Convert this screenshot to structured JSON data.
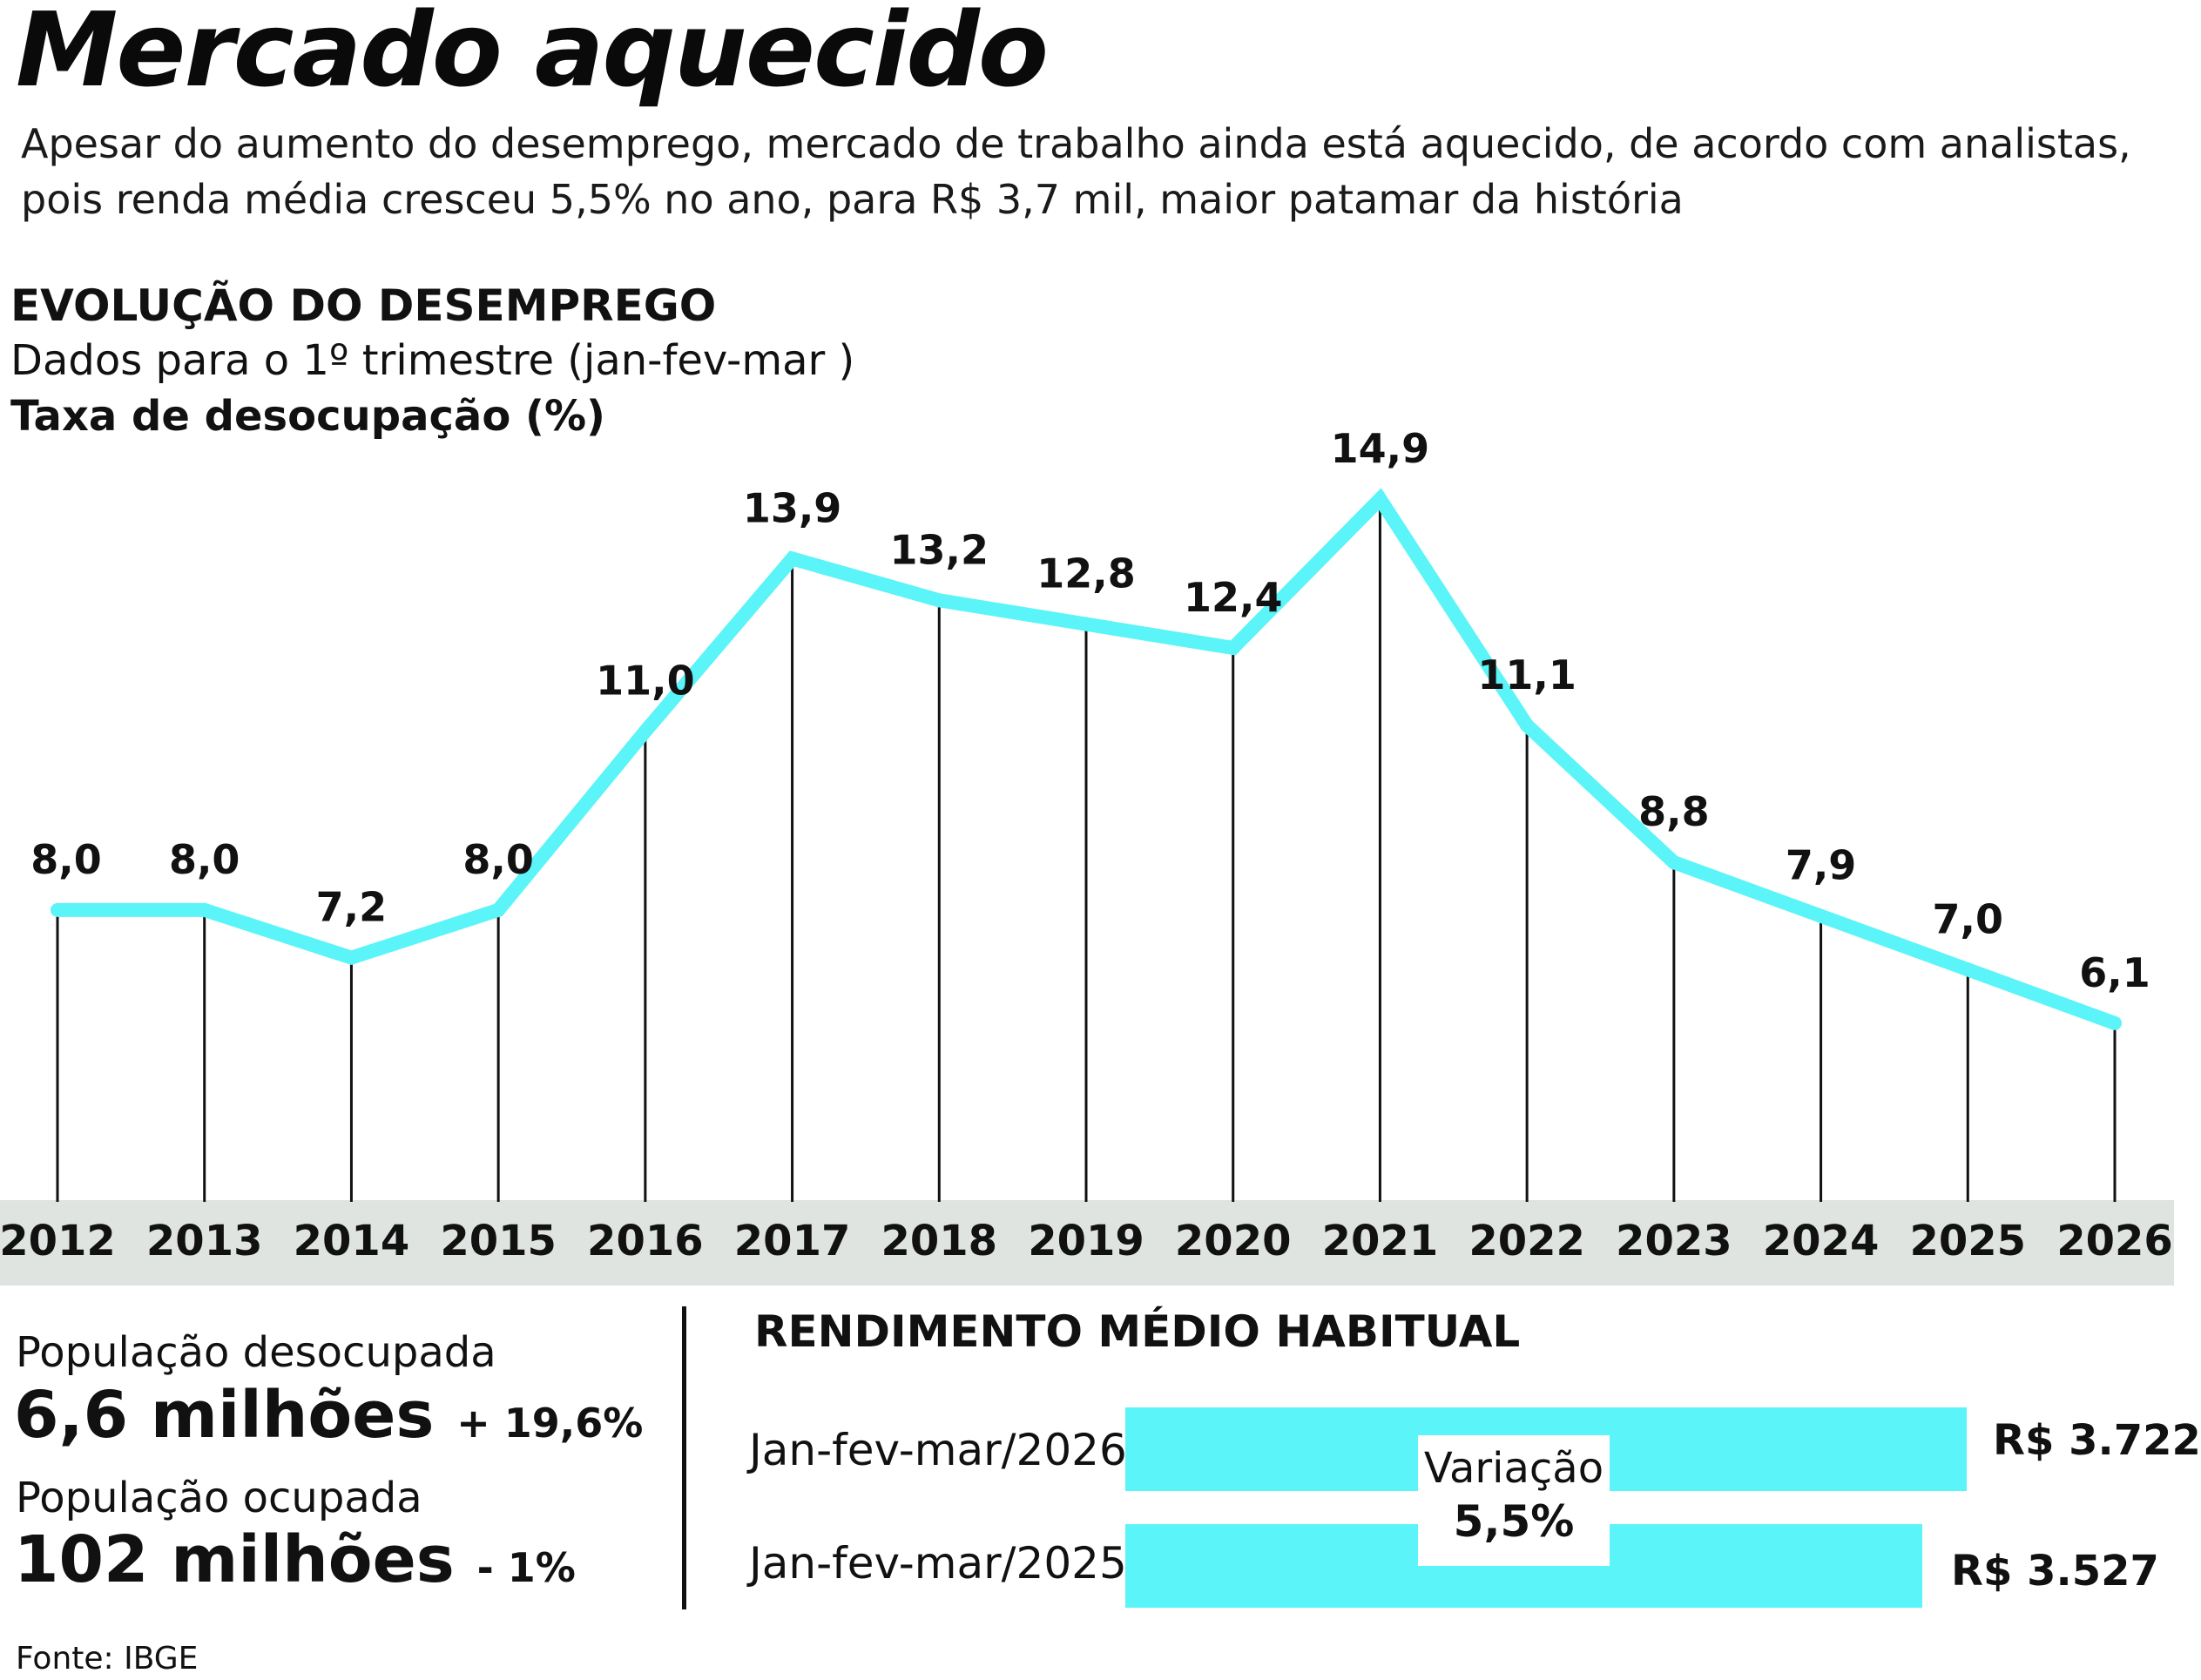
{
  "title": "Mercado aquecido",
  "subtitle_line1": "Apesar do aumento do desemprego, mercado de trabalho ainda está aquecido, de acordo com analistas,",
  "subtitle_line2": "pois renda média cresceu 5,5% no ano, para R$ 3,7 mil, maior patamar da história",
  "chart_data": {
    "type": "line",
    "title": "EVOLUÇÃO DO DESEMPREGO",
    "subtitle": "Dados para  o 1º trimestre (jan-fev-mar )",
    "ylabel": "Taxa de desocupação (%)",
    "xlabel": "",
    "categories": [
      "2012",
      "2013",
      "2014",
      "2015",
      "2016",
      "2017",
      "2018",
      "2019",
      "2020",
      "2021",
      "2022",
      "2023",
      "2024",
      "2025",
      "2026"
    ],
    "values": [
      8.0,
      8.0,
      7.2,
      8.0,
      11.0,
      13.9,
      13.2,
      12.8,
      12.4,
      14.9,
      11.1,
      8.8,
      7.9,
      7.0,
      6.1
    ],
    "value_labels": [
      "8,0",
      "8,0",
      "7,2",
      "8,0",
      "11,0",
      "13,9",
      "13,2",
      "12,8",
      "12,4",
      "14,9",
      "11,1",
      "8,8",
      "7,9",
      "7,0",
      "6,1"
    ],
    "ylim": [
      3.1,
      14.9
    ],
    "grid": false,
    "legend": "none",
    "line_color": "#5bf4f9",
    "axis_band_color": "#dfe4e1"
  },
  "population": {
    "unemployed_label": "População desocupada",
    "unemployed_value": "6,6 milhões",
    "unemployed_change": "+ 19,6%",
    "employed_label": "População ocupada",
    "employed_value": "102 milhões",
    "employed_change": "- 1%"
  },
  "income": {
    "title": "RENDIMENTO MÉDIO HABITUAL",
    "rows": [
      {
        "period": "Jan-fev-mar/2026",
        "value_label": "R$ 3.722",
        "value": 3722
      },
      {
        "period": "Jan-fev-mar/2025",
        "value_label": "R$ 3.527",
        "value": 3527
      }
    ],
    "variation_label": "Variação",
    "variation_value": "5,5%",
    "bar_color": "#5bf4f9"
  },
  "source": "Fonte: IBGE"
}
